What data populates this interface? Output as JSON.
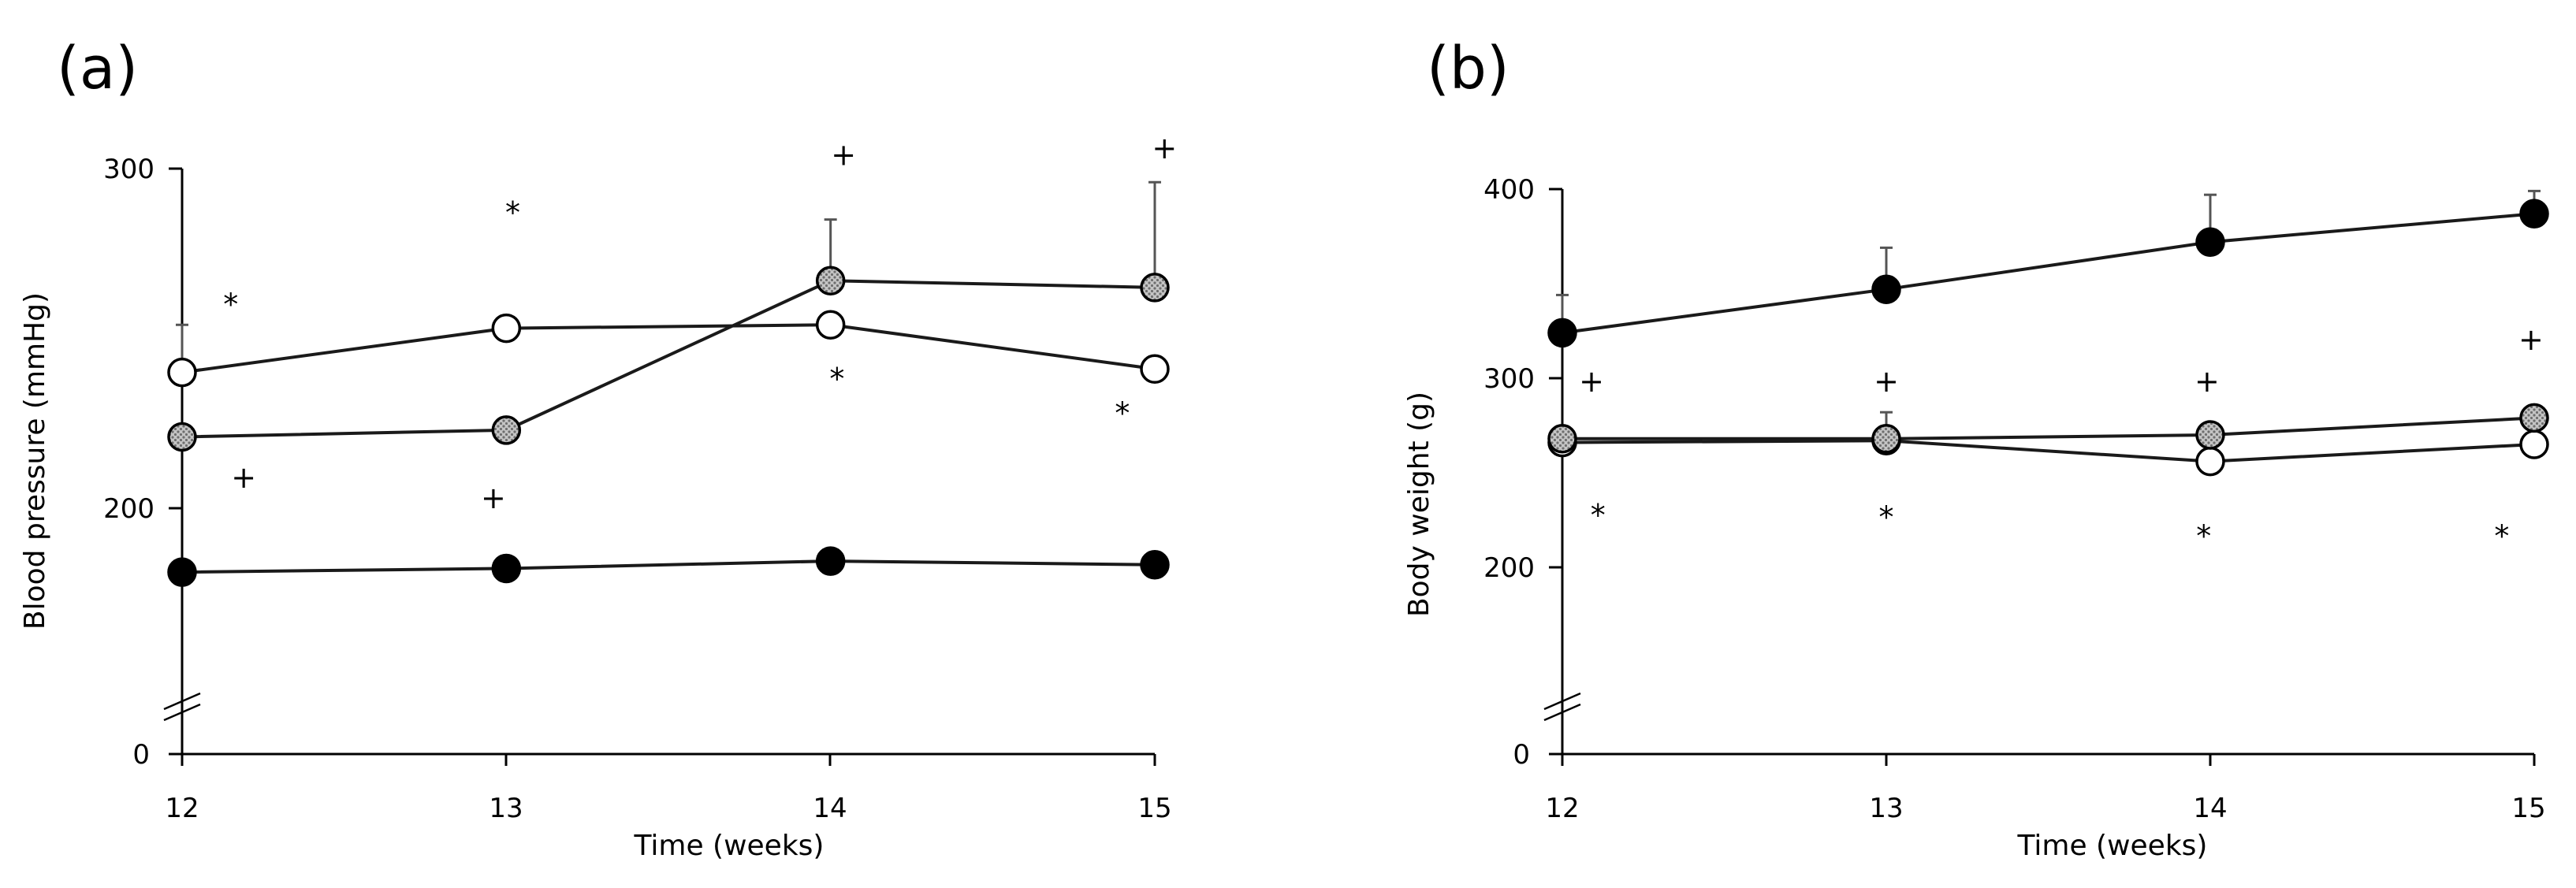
{
  "chart_data": [
    {
      "panel": "(a)",
      "type": "line",
      "xlabel": "Time (weeks)",
      "ylabel": "Blood pressure (mmHg)",
      "x": [
        12,
        13,
        14,
        15
      ],
      "xlim": [
        12,
        15
      ],
      "ylim": [
        0,
        300
      ],
      "y_axis_break": true,
      "y_axis_break_range": [
        0,
        80
      ],
      "yticks": [
        0,
        200,
        300
      ],
      "grid": false,
      "legend": "none",
      "series": [
        {
          "marker": "filled-black-circle",
          "values": [
            148,
            151,
            157,
            154
          ],
          "error": [
            0,
            0,
            0,
            0
          ]
        },
        {
          "marker": "open-circle",
          "values": [
            240,
            253,
            254,
            241
          ],
          "error": [
            14,
            0,
            0,
            0
          ]
        },
        {
          "marker": "hatched-gray-circle",
          "values": [
            221,
            223,
            267,
            265
          ],
          "error": [
            0,
            0,
            18,
            31
          ]
        }
      ],
      "annotations": [
        {
          "text": "*",
          "x": 12.15,
          "y": 257
        },
        {
          "text": "+",
          "x": 12.19,
          "y": 206
        },
        {
          "text": "*",
          "x": 13.02,
          "y": 284
        },
        {
          "text": "+",
          "x": 12.96,
          "y": 200
        },
        {
          "text": "+",
          "x": 14.04,
          "y": 301
        },
        {
          "text": "*",
          "x": 14.02,
          "y": 235
        },
        {
          "text": "+",
          "x": 15.03,
          "y": 303
        },
        {
          "text": "*",
          "x": 14.9,
          "y": 225
        }
      ]
    },
    {
      "panel": "(b)",
      "type": "line",
      "xlabel": "Time (weeks)",
      "ylabel": "Body weight (g)",
      "x": [
        12,
        13,
        14,
        15
      ],
      "xlim": [
        12,
        15
      ],
      "ylim": [
        0,
        400
      ],
      "y_axis_break": true,
      "y_axis_break_range": [
        0,
        100
      ],
      "yticks": [
        0,
        200,
        300,
        400
      ],
      "grid": false,
      "legend": "none",
      "series": [
        {
          "marker": "filled-black-circle",
          "values": [
            324,
            347,
            372,
            387
          ],
          "error": [
            20,
            22,
            25,
            12
          ]
        },
        {
          "marker": "open-circle",
          "values": [
            266,
            267,
            256,
            265
          ],
          "error": [
            0,
            15,
            18,
            15
          ]
        },
        {
          "marker": "hatched-gray-circle",
          "values": [
            268,
            268,
            270,
            279
          ],
          "error": [
            0,
            0,
            0,
            0
          ]
        }
      ],
      "annotations": [
        {
          "text": "+",
          "x": 12.09,
          "y": 293
        },
        {
          "text": "*",
          "x": 12.11,
          "y": 222
        },
        {
          "text": "+",
          "x": 13.0,
          "y": 293
        },
        {
          "text": "*",
          "x": 13.0,
          "y": 221
        },
        {
          "text": "+",
          "x": 13.99,
          "y": 293
        },
        {
          "text": "*",
          "x": 13.98,
          "y": 211
        },
        {
          "text": "+",
          "x": 14.99,
          "y": 315
        },
        {
          "text": "*",
          "x": 14.9,
          "y": 211
        }
      ]
    }
  ],
  "colors": {
    "axis": "#000000",
    "line": "#1a1a1a",
    "filled_marker": "#000000",
    "open_marker": "#ffffff",
    "hatched_marker": "#bdbdbd",
    "error_bar": "#555555"
  }
}
